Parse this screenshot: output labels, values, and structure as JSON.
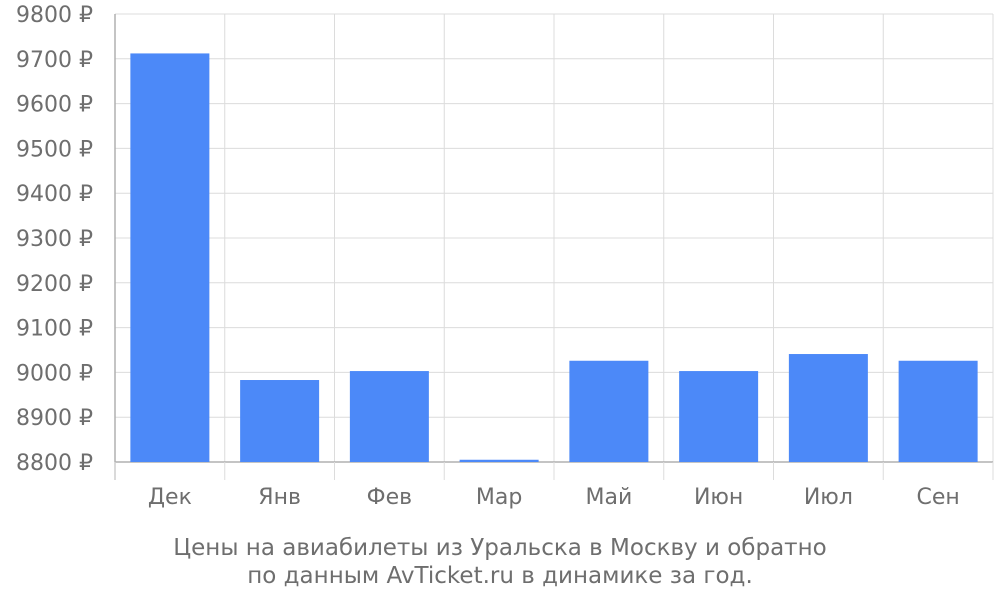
{
  "chart_data": {
    "type": "bar",
    "categories": [
      "Дек",
      "Янв",
      "Фев",
      "Мар",
      "Май",
      "Июн",
      "Июл",
      "Сен"
    ],
    "values": [
      9712,
      8983,
      9003,
      8805,
      9026,
      9003,
      9041,
      9026
    ],
    "ylim": [
      8800,
      9800
    ],
    "yticks": [
      8800,
      8900,
      9000,
      9100,
      9200,
      9300,
      9400,
      9500,
      9600,
      9700,
      9800
    ],
    "ytick_suffix": " ₽",
    "grid": true,
    "bar_color": "#4c89f8",
    "caption_line1": "Цены на авиабилеты из Уральска в Москву и обратно",
    "caption_line2": "по данным AvTicket.ru в динамике за год."
  }
}
